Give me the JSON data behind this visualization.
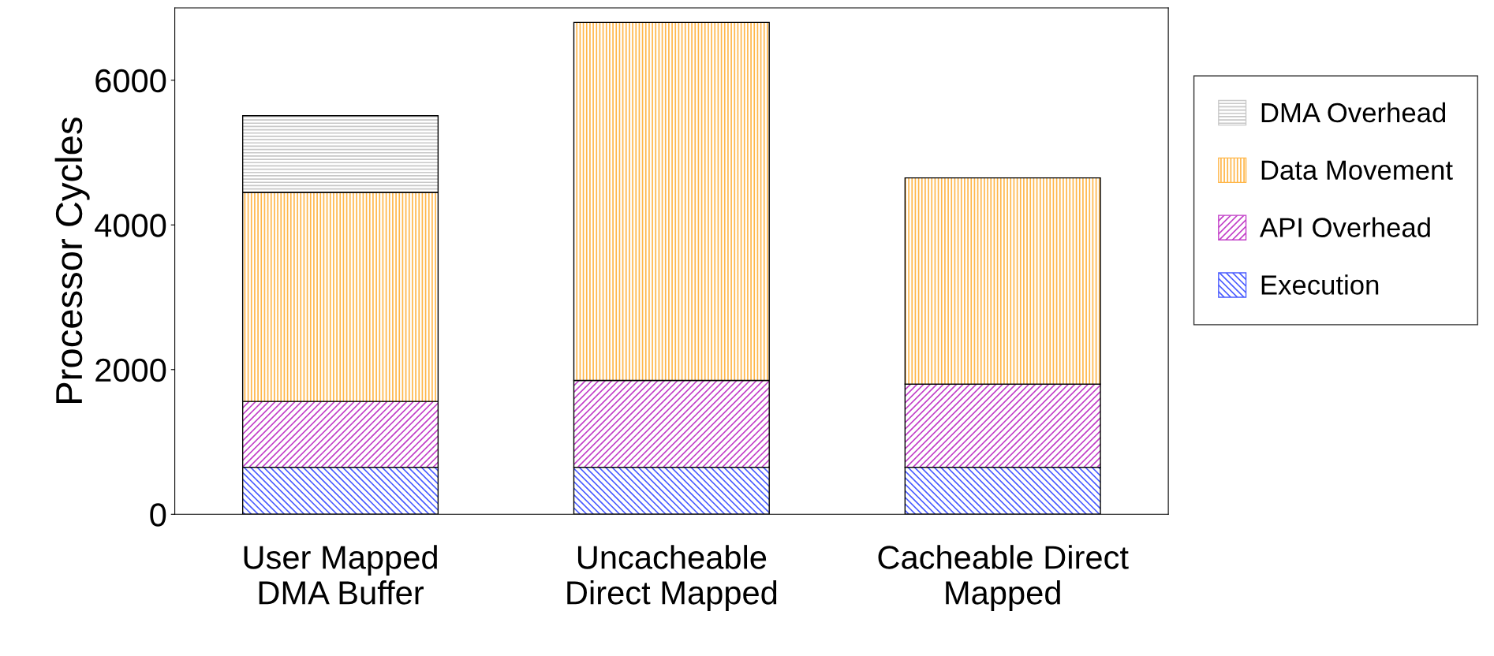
{
  "chart_data": {
    "type": "bar",
    "stacked": true,
    "ylabel": "Processor Cycles",
    "categories": [
      "User Mapped\nDMA Buffer",
      "Uncacheable\nDirect Mapped",
      "Cacheable Direct\nMapped"
    ],
    "series": [
      {
        "name": "Execution",
        "color": "#4a5cff",
        "values": [
          650,
          650,
          650
        ]
      },
      {
        "name": "API Overhead",
        "color": "#c23fc8",
        "values": [
          910,
          1200,
          1150
        ]
      },
      {
        "name": "Data Movement",
        "color": "#ffb648",
        "values": [
          2890,
          4950,
          2850
        ]
      },
      {
        "name": "DMA Overhead",
        "color": "#c8c8c8",
        "values": [
          1060,
          0,
          0
        ]
      }
    ],
    "ylim": [
      0,
      7000
    ],
    "yticks": [
      0,
      2000,
      4000,
      6000
    ],
    "grid": false,
    "legend": "right"
  }
}
